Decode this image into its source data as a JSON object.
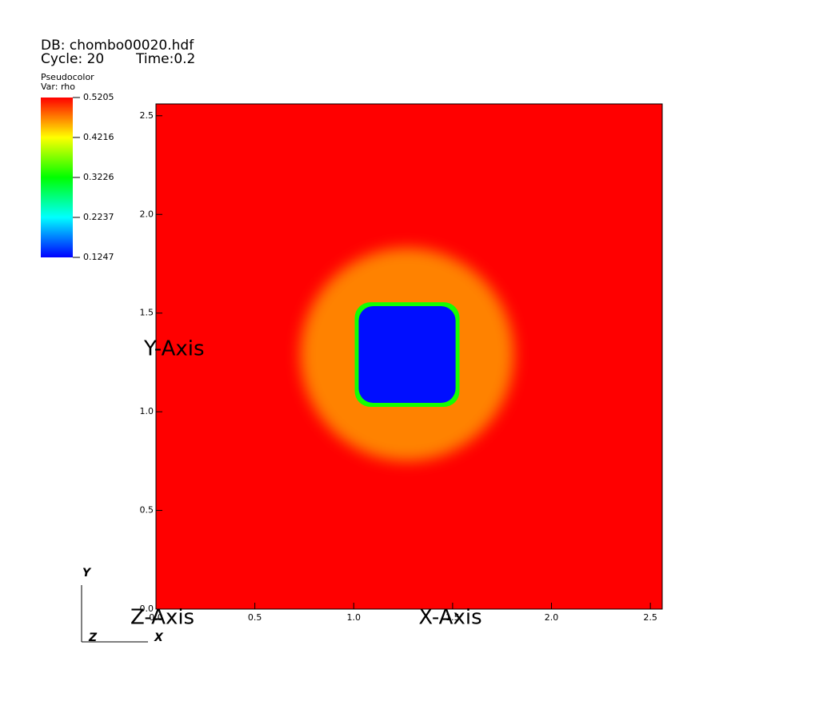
{
  "chart_data": {
    "type": "pseudocolor",
    "db_label": "DB: chombo00020.hdf",
    "cycle_label": "Cycle: 20",
    "time_label": "Time:0.2",
    "legend_title": "Pseudocolor",
    "legend_var": "Var: rho",
    "x_label": "X-Axis",
    "y_label": "Y-Axis",
    "z_label": "Z-Axis",
    "triad": {
      "x": "X",
      "y": "Y",
      "z": "Z"
    },
    "xlim": [
      0,
      2.56
    ],
    "ylim": [
      0,
      2.56
    ],
    "xticks": [
      {
        "value": 0,
        "label": "0.0"
      },
      0.5,
      {
        "value": 1,
        "label": "1.0"
      },
      1.5,
      {
        "value": 2,
        "label": "2.0"
      },
      2.5
    ],
    "yticks": [
      {
        "value": 0,
        "label": "0.0"
      },
      0.5,
      {
        "value": 1,
        "label": "1.0"
      },
      1.5,
      {
        "value": 2,
        "label": "2.0"
      },
      2.5
    ],
    "colorbar_lim": [
      0.1247,
      0.5205
    ],
    "colorbar_ticks": [
      0.5205,
      0.4216,
      0.3226,
      0.2237,
      0.1247
    ],
    "colormap": [
      "#0000ff",
      "#00ffff",
      "#00ff00",
      "#ffff00",
      "#ff0000"
    ],
    "background": 0.5205,
    "center": [
      1.27,
      1.29
    ],
    "regions": [
      {
        "value": 0.47,
        "radius": 0.54
      },
      {
        "value": 0.33,
        "half_width": 0.265
      },
      {
        "value": 0.13,
        "half_width": 0.245
      }
    ]
  }
}
